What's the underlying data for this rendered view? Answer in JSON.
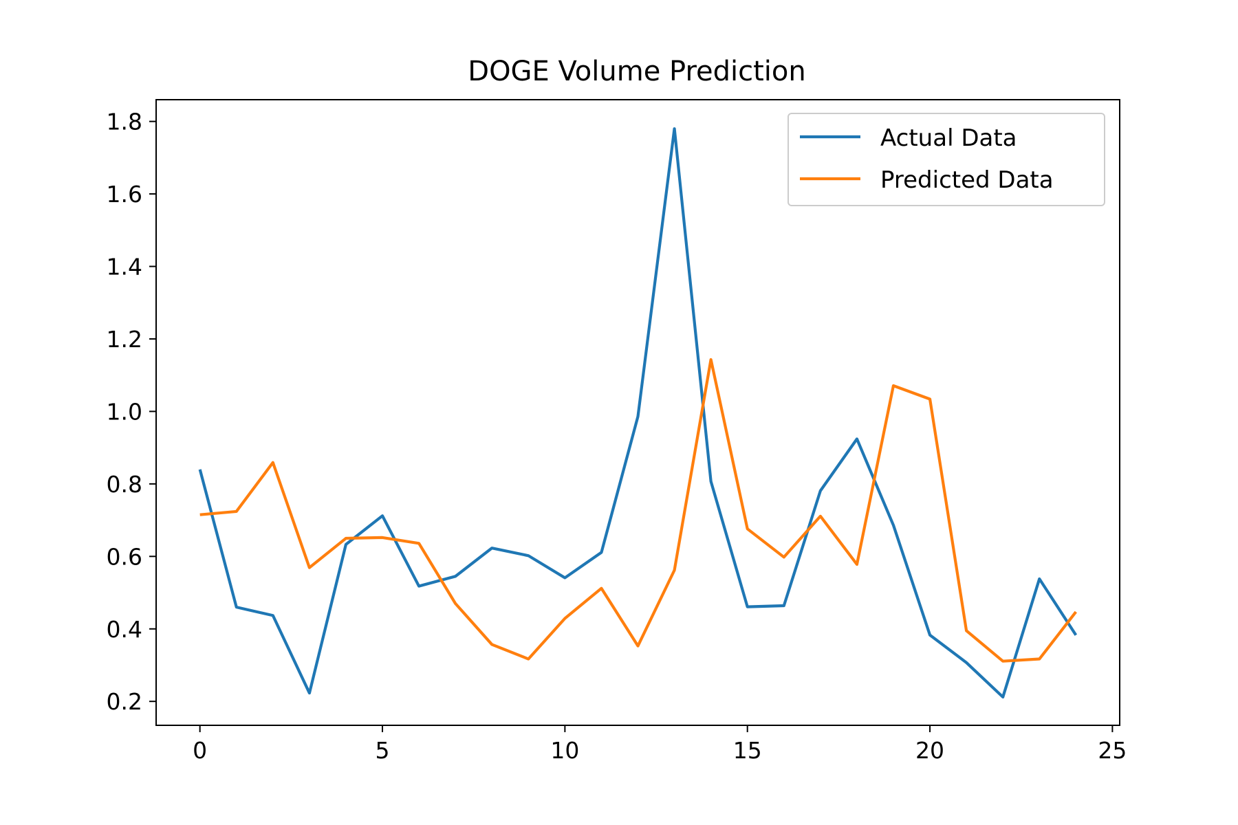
{
  "chart_data": {
    "type": "line",
    "title": "DOGE Volume Prediction",
    "xlabel": "",
    "ylabel": "",
    "xlim": [
      -1.2,
      25.2
    ],
    "ylim": [
      0.134,
      1.86
    ],
    "xticks": [
      "0",
      "5",
      "10",
      "15",
      "20",
      "25"
    ],
    "yticks": [
      "0.2",
      "0.4",
      "0.6",
      "0.8",
      "1.0",
      "1.2",
      "1.4",
      "1.6",
      "1.8"
    ],
    "grid": false,
    "legend_position": "upper-right",
    "x": [
      0,
      1,
      2,
      3,
      4,
      5,
      6,
      7,
      8,
      9,
      10,
      11,
      12,
      13,
      14,
      15,
      16,
      17,
      18,
      19,
      20,
      21,
      22,
      23,
      24
    ],
    "series": [
      {
        "name": "Actual Data",
        "color": "#1f77b4",
        "values": [
          0.84,
          0.46,
          0.437,
          0.223,
          0.633,
          0.712,
          0.518,
          0.545,
          0.623,
          0.602,
          0.541,
          0.611,
          0.986,
          1.78,
          0.807,
          0.461,
          0.464,
          0.781,
          0.924,
          0.686,
          0.383,
          0.307,
          0.212,
          0.538,
          0.383
        ]
      },
      {
        "name": "Predicted Data",
        "color": "#ff7f0e",
        "values": [
          0.715,
          0.724,
          0.859,
          0.569,
          0.65,
          0.652,
          0.636,
          0.47,
          0.357,
          0.317,
          0.429,
          0.512,
          0.353,
          0.562,
          1.143,
          0.676,
          0.598,
          0.711,
          0.578,
          1.071,
          1.034,
          0.395,
          0.311,
          0.317,
          0.447
        ]
      }
    ]
  }
}
